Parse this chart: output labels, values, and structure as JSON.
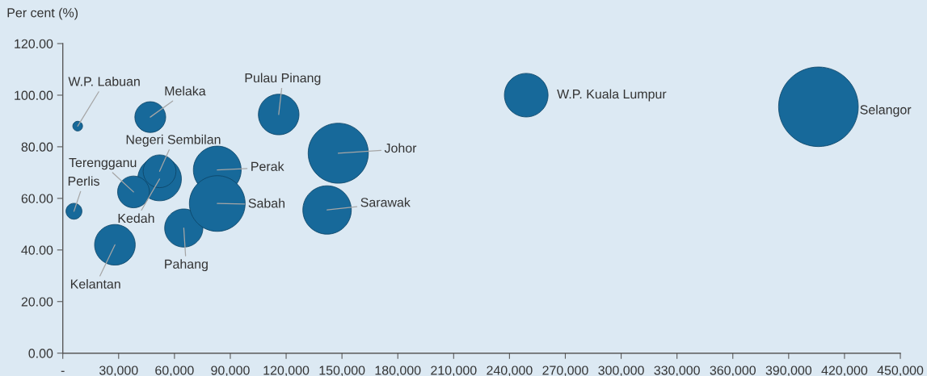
{
  "chart_data": {
    "type": "bubble",
    "ylabel": "Per cent (%)",
    "marker": "circle",
    "xlim": [
      0,
      450000
    ],
    "xticks": [
      {
        "value": 0,
        "label": "-"
      },
      {
        "value": 30000,
        "label": "30,000"
      },
      {
        "value": 60000,
        "label": "60,000"
      },
      {
        "value": 90000,
        "label": "90,000"
      },
      {
        "value": 120000,
        "label": "120,000"
      },
      {
        "value": 150000,
        "label": "150,000"
      },
      {
        "value": 180000,
        "label": "180,000"
      },
      {
        "value": 210000,
        "label": "210,000"
      },
      {
        "value": 240000,
        "label": "240,000"
      },
      {
        "value": 270000,
        "label": "270,000"
      },
      {
        "value": 300000,
        "label": "300,000"
      },
      {
        "value": 330000,
        "label": "330,000"
      },
      {
        "value": 360000,
        "label": "360,000"
      },
      {
        "value": 390000,
        "label": "390,000"
      },
      {
        "value": 420000,
        "label": "420,000"
      },
      {
        "value": 450000,
        "label": "450,000"
      }
    ],
    "ylim": [
      0,
      120
    ],
    "yticks": [
      {
        "value": 0,
        "label": "0.00"
      },
      {
        "value": 20,
        "label": "20.00"
      },
      {
        "value": 40,
        "label": "40.00"
      },
      {
        "value": 60,
        "label": "60.00"
      },
      {
        "value": 80,
        "label": "80.00"
      },
      {
        "value": 100,
        "label": "100.00"
      },
      {
        "value": 120,
        "label": "120.00"
      }
    ],
    "series": [
      {
        "name": "Johor",
        "color": "#17699a",
        "x": [
          148000
        ],
        "values": [
          77.5
        ],
        "sizes": [
          0.57
        ]
      },
      {
        "name": "Kedah",
        "color": "#17699a",
        "x": [
          52000
        ],
        "values": [
          67.5
        ],
        "sizes": [
          0.3
        ]
      },
      {
        "name": "Kelantan",
        "color": "#17699a",
        "x": [
          28000
        ],
        "values": [
          42
        ],
        "sizes": [
          0.26
        ]
      },
      {
        "name": "Melaka",
        "color": "#17699a",
        "x": [
          47000
        ],
        "values": [
          91.5
        ],
        "sizes": [
          0.15
        ]
      },
      {
        "name": "Negeri Sembilan",
        "color": "#17699a",
        "x": [
          52000
        ],
        "values": [
          70.5
        ],
        "sizes": [
          0.17
        ]
      },
      {
        "name": "Pahang",
        "color": "#17699a",
        "x": [
          65000
        ],
        "values": [
          48.5
        ],
        "sizes": [
          0.23
        ]
      },
      {
        "name": "Pulau Pinang",
        "color": "#17699a",
        "x": [
          116000
        ],
        "values": [
          92.5
        ],
        "sizes": [
          0.26
        ]
      },
      {
        "name": "Perak",
        "color": "#17699a",
        "x": [
          83000
        ],
        "values": [
          71
        ],
        "sizes": [
          0.36
        ]
      },
      {
        "name": "Perlis",
        "color": "#17699a",
        "x": [
          6000
        ],
        "values": [
          55
        ],
        "sizes": [
          0.04
        ]
      },
      {
        "name": "Selangor",
        "color": "#17699a",
        "x": [
          406000
        ],
        "values": [
          95.5
        ],
        "sizes": [
          1
        ]
      },
      {
        "name": "Terengganu",
        "color": "#17699a",
        "x": [
          38000
        ],
        "values": [
          62.5
        ],
        "sizes": [
          0.16
        ]
      },
      {
        "name": "Sabah",
        "color": "#17699a",
        "x": [
          83000
        ],
        "values": [
          58
        ],
        "sizes": [
          0.49
        ]
      },
      {
        "name": "Sarawak",
        "color": "#17699a",
        "x": [
          142000
        ],
        "values": [
          55.5
        ],
        "sizes": [
          0.37
        ]
      },
      {
        "name": "W.P. Kuala Lumpur",
        "color": "#17699a",
        "x": [
          249000
        ],
        "values": [
          100
        ],
        "sizes": [
          0.3
        ]
      },
      {
        "name": "W.P. Labuan",
        "color": "#17699a",
        "x": [
          8000
        ],
        "values": [
          88
        ],
        "sizes": [
          0.015
        ]
      }
    ]
  }
}
